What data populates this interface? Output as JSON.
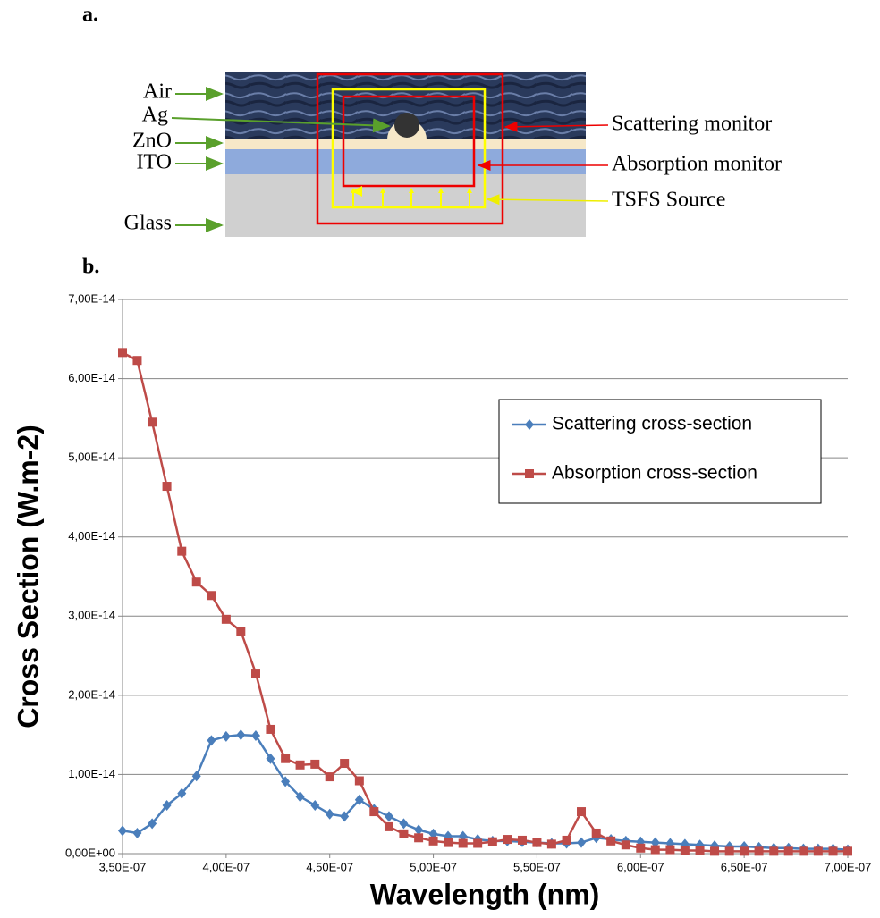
{
  "panel_a": {
    "label": "a.",
    "layers": [
      "Air",
      "Ag",
      "ZnO",
      "ITO",
      "Glass"
    ],
    "monitors": [
      "Scattering monitor",
      "Absorption monitor",
      "TSFS Source"
    ]
  },
  "panel_b": {
    "label": "b."
  },
  "chart_data": {
    "type": "line",
    "xlabel": "Wavelength (nm)",
    "ylabel": "Cross Section (W.m-2)",
    "x": [
      3.5e-07,
      3.571e-07,
      3.643e-07,
      3.714e-07,
      3.786e-07,
      3.857e-07,
      3.929e-07,
      4e-07,
      4.071e-07,
      4.143e-07,
      4.214e-07,
      4.286e-07,
      4.357e-07,
      4.429e-07,
      4.5e-07,
      4.571e-07,
      4.643e-07,
      4.714e-07,
      4.786e-07,
      4.857e-07,
      4.929e-07,
      5e-07,
      5.071e-07,
      5.143e-07,
      5.214e-07,
      5.286e-07,
      5.357e-07,
      5.429e-07,
      5.5e-07,
      5.571e-07,
      5.643e-07,
      5.714e-07,
      5.786e-07,
      5.857e-07,
      5.929e-07,
      6e-07,
      6.071e-07,
      6.143e-07,
      6.214e-07,
      6.286e-07,
      6.357e-07,
      6.429e-07,
      6.5e-07,
      6.571e-07,
      6.643e-07,
      6.714e-07,
      6.786e-07,
      6.857e-07,
      6.929e-07,
      7e-07
    ],
    "series": [
      {
        "name": "Scattering cross-section",
        "color": "#4a7ebb",
        "marker": "diamond",
        "values": [
          2.9e-15,
          2.6e-15,
          3.8e-15,
          6.1e-15,
          7.6e-15,
          9.8e-15,
          1.43e-14,
          1.48e-14,
          1.5e-14,
          1.49e-14,
          1.2e-14,
          9.1e-15,
          7.2e-15,
          6.1e-15,
          5e-15,
          4.7e-15,
          6.8e-15,
          5.6e-15,
          4.7e-15,
          3.8e-15,
          3e-15,
          2.5e-15,
          2.2e-15,
          2.2e-15,
          1.8e-15,
          1.6e-15,
          1.6e-15,
          1.5e-15,
          1.4e-15,
          1.3e-15,
          1.3e-15,
          1.4e-15,
          2e-15,
          1.8e-15,
          1.6e-15,
          1.5e-15,
          1.4e-15,
          1.3e-15,
          1.2e-15,
          1.1e-15,
          1e-15,
          9e-16,
          9e-16,
          8e-16,
          7e-16,
          7e-16,
          6e-16,
          6e-16,
          6e-16,
          5e-16
        ]
      },
      {
        "name": "Absorption cross-section",
        "color": "#be4b48",
        "marker": "square",
        "values": [
          6.33e-14,
          6.23e-14,
          5.45e-14,
          4.64e-14,
          3.82e-14,
          3.43e-14,
          3.26e-14,
          2.96e-14,
          2.81e-14,
          2.28e-14,
          1.57e-14,
          1.2e-14,
          1.12e-14,
          1.13e-14,
          9.7e-15,
          1.14e-14,
          9.2e-15,
          5.3e-15,
          3.4e-15,
          2.5e-15,
          2e-15,
          1.6e-15,
          1.4e-15,
          1.3e-15,
          1.3e-15,
          1.5e-15,
          1.8e-15,
          1.7e-15,
          1.4e-15,
          1.2e-15,
          1.7e-15,
          5.3e-15,
          2.6e-15,
          1.6e-15,
          1.1e-15,
          7e-16,
          5e-16,
          5e-16,
          4e-16,
          4e-16,
          3e-16,
          3e-16,
          3e-16,
          3e-16,
          3e-16,
          3e-16,
          3e-16,
          3e-16,
          3e-16,
          3e-16
        ]
      }
    ],
    "xlim": [
      3.5e-07,
      7e-07
    ],
    "xticks": [
      {
        "value": 3.5e-07,
        "label": "3,50E-07"
      },
      {
        "value": 4e-07,
        "label": "4,00E-07"
      },
      {
        "value": 4.5e-07,
        "label": "4,50E-07"
      },
      {
        "value": 5e-07,
        "label": "5,00E-07"
      },
      {
        "value": 5.5e-07,
        "label": "5,50E-07"
      },
      {
        "value": 6e-07,
        "label": "6,00E-07"
      },
      {
        "value": 6.5e-07,
        "label": "6,50E-07"
      },
      {
        "value": 7e-07,
        "label": "7,00E-07"
      }
    ],
    "ylim": [
      0,
      7e-14
    ],
    "yticks": [
      {
        "value": 0,
        "label": "0,00E+00"
      },
      {
        "value": 1e-14,
        "label": "1,00E-14"
      },
      {
        "value": 2e-14,
        "label": "2,00E-14"
      },
      {
        "value": 3e-14,
        "label": "3,00E-14"
      },
      {
        "value": 4e-14,
        "label": "4,00E-14"
      },
      {
        "value": 5e-14,
        "label": "5,00E-14"
      },
      {
        "value": 6e-14,
        "label": "6,00E-14"
      },
      {
        "value": 7e-14,
        "label": "7,00E-14"
      }
    ],
    "grid": true,
    "legend": "right"
  }
}
